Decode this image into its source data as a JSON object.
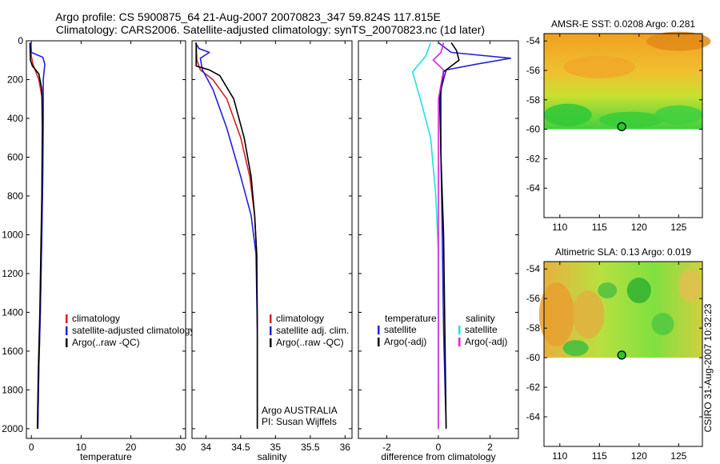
{
  "title_line1": "Argo profile: CS 5900875_64 21-Aug-2007 20070823_347 59.824S 117.815E",
  "title_line2": "Climatology: CARS2006. Satellite-adjusted climatology: synTS_20070823.nc (1d later)",
  "side_stamp": "CSIRO 31-Aug-2007 10:32:23",
  "colors": {
    "red": "#d62020",
    "blue": "#2020e0",
    "black": "#000000",
    "cyan": "#20e0e0",
    "magenta": "#e020e0"
  },
  "chart_data": [
    {
      "type": "line",
      "xlabel": "temperature",
      "xlim": [
        -1,
        31
      ],
      "ylim": [
        2050,
        0
      ],
      "xticks": [
        0,
        10,
        20,
        30
      ],
      "yticks": [
        0,
        200,
        400,
        600,
        800,
        1000,
        1200,
        1400,
        1600,
        1800,
        2000
      ],
      "legend": {
        "position": "lower-right",
        "entries": [
          {
            "label": "climatology",
            "color": "red"
          },
          {
            "label": "satellite-adjusted climatology",
            "color": "blue"
          },
          {
            "label": "Argo(..raw -QC)",
            "color": "black"
          }
        ]
      },
      "series": [
        {
          "name": "climatology",
          "color": "red",
          "points": [
            [
              -0.2,
              10
            ],
            [
              0,
              80
            ],
            [
              0.3,
              120
            ],
            [
              1.5,
              200
            ],
            [
              2.2,
              300
            ],
            [
              2.3,
              500
            ],
            [
              2.2,
              800
            ],
            [
              2.0,
              1100
            ],
            [
              1.8,
              1400
            ],
            [
              1.5,
              1700
            ],
            [
              1.3,
              2000
            ]
          ]
        },
        {
          "name": "satellite-adjusted climatology",
          "color": "blue",
          "points": [
            [
              -0.1,
              10
            ],
            [
              0,
              60
            ],
            [
              2.3,
              85
            ],
            [
              2.7,
              120
            ],
            [
              2.4,
              200
            ],
            [
              2.4,
              400
            ],
            [
              2.3,
              700
            ],
            [
              2.1,
              1000
            ],
            [
              1.8,
              1400
            ],
            [
              1.5,
              1700
            ],
            [
              1.3,
              2000
            ]
          ]
        },
        {
          "name": "Argo(..raw -QC)",
          "color": "black",
          "points": [
            [
              -0.3,
              10
            ],
            [
              -0.2,
              100
            ],
            [
              0.2,
              130
            ],
            [
              1.5,
              170
            ],
            [
              2.1,
              250
            ],
            [
              2.2,
              450
            ],
            [
              2.1,
              800
            ],
            [
              1.9,
              1100
            ],
            [
              1.7,
              1400
            ],
            [
              1.4,
              1700
            ],
            [
              1.2,
              2000
            ]
          ]
        }
      ]
    },
    {
      "type": "line",
      "xlabel": "salinity",
      "xlim": [
        33.8,
        36.1
      ],
      "ylim": [
        2050,
        0
      ],
      "xticks": [
        34,
        34.5,
        35,
        35.5,
        36
      ],
      "legend": {
        "position": "lower-right",
        "entries": [
          {
            "label": "climatology",
            "color": "red"
          },
          {
            "label": "satellite adj. clim.",
            "color": "blue"
          },
          {
            "label": "Argo(..raw -QC)",
            "color": "black"
          }
        ]
      },
      "annotation": [
        "Argo AUSTRALIA",
        "PI: Susan Wijffels"
      ],
      "series": [
        {
          "name": "climatology",
          "color": "red",
          "points": [
            [
              33.86,
              10
            ],
            [
              33.87,
              100
            ],
            [
              33.92,
              150
            ],
            [
              34.1,
              200
            ],
            [
              34.3,
              300
            ],
            [
              34.5,
              500
            ],
            [
              34.63,
              700
            ],
            [
              34.7,
              900
            ],
            [
              34.73,
              1100
            ],
            [
              34.74,
              1500
            ],
            [
              34.74,
              2000
            ]
          ]
        },
        {
          "name": "satellite adj. clim.",
          "color": "blue",
          "points": [
            [
              33.85,
              10
            ],
            [
              33.9,
              40
            ],
            [
              34.05,
              60
            ],
            [
              33.92,
              90
            ],
            [
              33.95,
              150
            ],
            [
              34.1,
              250
            ],
            [
              34.3,
              450
            ],
            [
              34.5,
              700
            ],
            [
              34.65,
              900
            ],
            [
              34.72,
              1100
            ],
            [
              34.74,
              1500
            ],
            [
              34.74,
              2000
            ]
          ]
        },
        {
          "name": "Argo(..raw -QC)",
          "color": "black",
          "points": [
            [
              33.86,
              10
            ],
            [
              33.86,
              130
            ],
            [
              34.05,
              150
            ],
            [
              34.2,
              180
            ],
            [
              34.4,
              300
            ],
            [
              34.55,
              500
            ],
            [
              34.65,
              700
            ],
            [
              34.7,
              900
            ],
            [
              34.73,
              1100
            ],
            [
              34.74,
              1500
            ],
            [
              34.74,
              2000
            ]
          ]
        }
      ]
    },
    {
      "type": "line",
      "xlabel": "difference from climatology",
      "xlim": [
        -3.1,
        3.1
      ],
      "ylim": [
        2050,
        0
      ],
      "xticks": [
        -2,
        0,
        2
      ],
      "legend": {
        "position": "lower-center",
        "entries": [
          {
            "label": "temperature",
            "color": ""
          },
          {
            "label": "satellite",
            "color": "blue"
          },
          {
            "label": "Argo(-adj)",
            "color": "black"
          },
          {
            "label": "salinity",
            "color": ""
          },
          {
            "label": "satellite",
            "color": "cyan"
          },
          {
            "label": "Argo(-adj)",
            "color": "magenta"
          }
        ]
      },
      "series": [
        {
          "name": "temperature satellite",
          "color": "blue",
          "points": [
            [
              0,
              10
            ],
            [
              0.5,
              60
            ],
            [
              2.8,
              90
            ],
            [
              1.5,
              120
            ],
            [
              0.3,
              150
            ],
            [
              0.1,
              250
            ],
            [
              0.1,
              600
            ],
            [
              0.15,
              1000
            ],
            [
              0.2,
              1500
            ],
            [
              0.3,
              2000
            ]
          ]
        },
        {
          "name": "temperature Argo(-adj)",
          "color": "black",
          "points": [
            [
              0.5,
              10
            ],
            [
              0.7,
              50
            ],
            [
              0.8,
              100
            ],
            [
              0.5,
              130
            ],
            [
              0.2,
              160
            ],
            [
              0.05,
              300
            ],
            [
              0.1,
              600
            ],
            [
              0.2,
              1000
            ],
            [
              0.25,
              1500
            ],
            [
              0.3,
              2000
            ]
          ]
        },
        {
          "name": "salinity satellite",
          "color": "cyan",
          "points": [
            [
              -0.3,
              10
            ],
            [
              -0.5,
              80
            ],
            [
              -1.0,
              160
            ],
            [
              -0.7,
              300
            ],
            [
              -0.3,
              500
            ],
            [
              -0.1,
              800
            ],
            [
              0,
              1100
            ],
            [
              0,
              1500
            ],
            [
              0,
              2000
            ]
          ]
        },
        {
          "name": "salinity Argo(-adj)",
          "color": "magenta",
          "points": [
            [
              0.2,
              10
            ],
            [
              0.1,
              60
            ],
            [
              -0.2,
              100
            ],
            [
              0.2,
              150
            ],
            [
              0,
              300
            ],
            [
              0,
              600
            ],
            [
              0,
              1000
            ],
            [
              0,
              1500
            ],
            [
              0,
              2000
            ]
          ]
        }
      ]
    },
    {
      "type": "heatmap",
      "title": "AMSR-E SST: 0.0208 Argo: 0.281",
      "xlim": [
        108,
        128
      ],
      "ylim": [
        -66,
        -53.5
      ],
      "xticks": [
        110,
        115,
        120,
        125
      ],
      "yticks": [
        -54,
        -56,
        -58,
        -60,
        -62,
        -64
      ],
      "data_lat_range": [
        -60,
        -53.5
      ],
      "marker": {
        "lon": 117.815,
        "lat": -59.824
      }
    },
    {
      "type": "heatmap",
      "title": "Altimetric SLA: 0.13 Argo: 0.019",
      "xlim": [
        108,
        128
      ],
      "ylim": [
        -66,
        -53.5
      ],
      "xticks": [
        110,
        115,
        120,
        125
      ],
      "yticks": [
        -54,
        -56,
        -58,
        -60,
        -62,
        -64
      ],
      "data_lat_range": [
        -60,
        -53.5
      ],
      "marker": {
        "lon": 117.815,
        "lat": -59.824
      }
    }
  ]
}
